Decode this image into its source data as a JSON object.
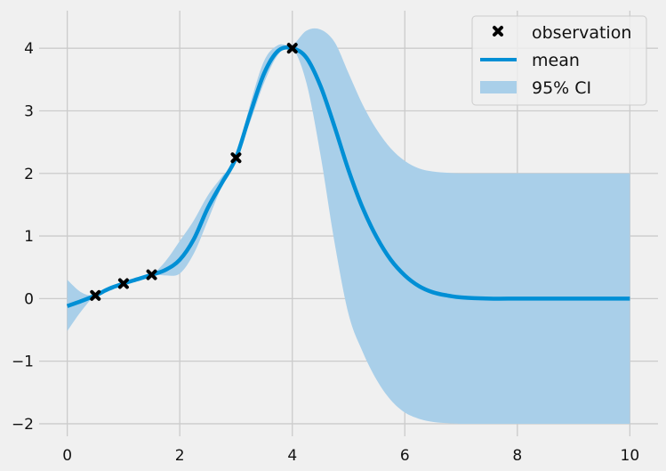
{
  "chart_data": {
    "type": "line",
    "title": "",
    "xlabel": "",
    "ylabel": "",
    "xlim": [
      -0.5,
      10.5
    ],
    "ylim": [
      -2.2,
      4.6
    ],
    "grid": true,
    "legend_position": "top-right",
    "x_ticks": [
      0,
      2,
      4,
      6,
      8,
      10
    ],
    "y_ticks": [
      -2,
      -1,
      0,
      1,
      2,
      3,
      4
    ],
    "x_tick_labels": [
      "0",
      "2",
      "4",
      "6",
      "8",
      "10"
    ],
    "y_tick_labels": [
      "−2",
      "−1",
      "0",
      "1",
      "2",
      "3",
      "4"
    ],
    "colors": {
      "mean": "#008fd5",
      "ci": "#a9cfe9",
      "observation": "#000000",
      "background": "#f0f0f0",
      "grid": "#cbcbcb"
    },
    "series": [
      {
        "name": "observation",
        "kind": "scatter",
        "x": [
          0.5,
          1.0,
          1.5,
          3.0,
          4.0
        ],
        "y": [
          0.05,
          0.24,
          0.38,
          2.25,
          4.0
        ]
      },
      {
        "name": "mean",
        "kind": "line",
        "x": [
          0,
          0.25,
          0.5,
          0.75,
          1.0,
          1.25,
          1.5,
          1.75,
          2.0,
          2.25,
          2.5,
          2.75,
          3.0,
          3.25,
          3.5,
          3.75,
          4.0,
          4.25,
          4.5,
          4.75,
          5.0,
          5.25,
          5.5,
          5.75,
          6.0,
          6.25,
          6.5,
          6.75,
          7.0,
          7.5,
          8.0,
          8.5,
          9.0,
          9.5,
          10.0
        ],
        "y": [
          -0.12,
          -0.04,
          0.05,
          0.16,
          0.24,
          0.31,
          0.38,
          0.46,
          0.62,
          0.95,
          1.45,
          1.85,
          2.25,
          2.95,
          3.6,
          3.96,
          4.0,
          3.85,
          3.4,
          2.75,
          2.05,
          1.45,
          0.98,
          0.62,
          0.37,
          0.2,
          0.1,
          0.05,
          0.02,
          0.0,
          0.0,
          0.0,
          0.0,
          0.0,
          0.0
        ]
      },
      {
        "name": "95% CI",
        "kind": "band",
        "x": [
          0,
          0.25,
          0.5,
          0.75,
          1.0,
          1.25,
          1.5,
          1.75,
          2.0,
          2.25,
          2.5,
          2.75,
          3.0,
          3.25,
          3.5,
          3.75,
          4.0,
          4.25,
          4.5,
          4.75,
          5.0,
          5.25,
          5.5,
          5.75,
          6.0,
          6.25,
          6.5,
          6.75,
          7.0,
          7.5,
          8.0,
          8.5,
          9.0,
          9.5,
          10.0
        ],
        "lower": [
          -0.52,
          -0.2,
          0.05,
          0.12,
          0.24,
          0.3,
          0.38,
          0.37,
          0.4,
          0.72,
          1.25,
          1.8,
          2.25,
          2.82,
          3.45,
          3.9,
          4.0,
          3.45,
          2.3,
          0.9,
          -0.25,
          -0.85,
          -1.3,
          -1.62,
          -1.82,
          -1.92,
          -1.97,
          -1.99,
          -2.0,
          -2.0,
          -2.0,
          -2.0,
          -2.0,
          -2.0,
          -2.0
        ],
        "upper": [
          0.3,
          0.1,
          0.05,
          0.18,
          0.24,
          0.32,
          0.38,
          0.6,
          0.92,
          1.25,
          1.65,
          1.95,
          2.25,
          3.1,
          3.8,
          4.05,
          4.05,
          4.28,
          4.3,
          4.1,
          3.6,
          3.1,
          2.7,
          2.4,
          2.2,
          2.08,
          2.03,
          2.01,
          2.0,
          2.0,
          2.0,
          2.0,
          2.0,
          2.0,
          2.0
        ]
      }
    ],
    "legend": [
      {
        "label": "observation",
        "marker": "x"
      },
      {
        "label": "mean",
        "marker": "line"
      },
      {
        "label": "95% CI",
        "marker": "patch"
      }
    ]
  }
}
